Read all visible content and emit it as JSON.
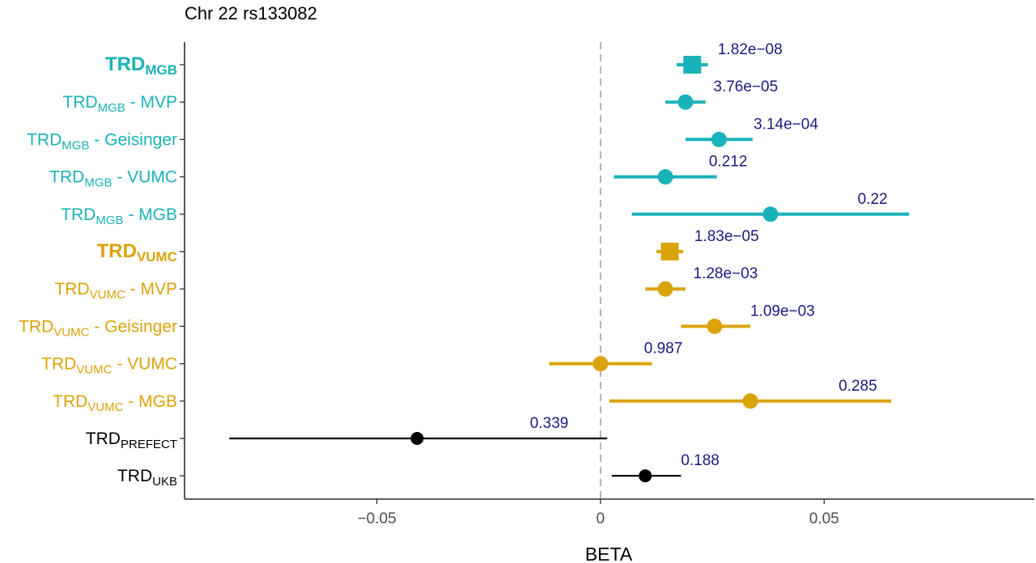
{
  "chart_data": {
    "type": "forest",
    "title": "Chr 22 rs133082",
    "xlabel": "BETA",
    "xlim": [
      -0.093,
      0.097
    ],
    "x_ticks": [
      -0.05,
      0,
      0.05
    ],
    "x_tick_labels": [
      "−0.05",
      "0",
      "0.05"
    ],
    "reference_line": 0,
    "grid": false,
    "colors": {
      "MGB": "#1ab2b9",
      "VUMC": "#dba30a",
      "other": "#000000",
      "pvalue": "#1a1a80"
    },
    "rows": [
      {
        "id": "trd-mgb",
        "base": "TRD",
        "sub": "MGB",
        "suffix": "",
        "bold": true,
        "group": "MGB",
        "marker": "square",
        "beta": 0.0205,
        "lo": 0.017,
        "hi": 0.024,
        "pvalue": "1.82e−08"
      },
      {
        "id": "trd-mgb-mvp",
        "base": "TRD",
        "sub": "MGB",
        "suffix": " - MVP",
        "bold": false,
        "group": "MGB",
        "marker": "circle",
        "beta": 0.019,
        "lo": 0.0145,
        "hi": 0.0235,
        "pvalue": "3.76e−05"
      },
      {
        "id": "trd-mgb-geisinger",
        "base": "TRD",
        "sub": "MGB",
        "suffix": " - Geisinger",
        "bold": false,
        "group": "MGB",
        "marker": "circle",
        "beta": 0.0265,
        "lo": 0.019,
        "hi": 0.034,
        "pvalue": "3.14e−04"
      },
      {
        "id": "trd-mgb-vumc",
        "base": "TRD",
        "sub": "MGB",
        "suffix": " - VUMC",
        "bold": false,
        "group": "MGB",
        "marker": "circle",
        "beta": 0.0145,
        "lo": 0.003,
        "hi": 0.026,
        "pvalue": "0.212"
      },
      {
        "id": "trd-mgb-mgb",
        "base": "TRD",
        "sub": "MGB",
        "suffix": " - MGB",
        "bold": false,
        "group": "MGB",
        "marker": "circle",
        "beta": 0.038,
        "lo": 0.007,
        "hi": 0.069,
        "pvalue": "0.22"
      },
      {
        "id": "trd-vumc",
        "base": "TRD",
        "sub": "VUMC",
        "suffix": "",
        "bold": true,
        "group": "VUMC",
        "marker": "square",
        "beta": 0.0155,
        "lo": 0.0125,
        "hi": 0.0185,
        "pvalue": "1.83e−05"
      },
      {
        "id": "trd-vumc-mvp",
        "base": "TRD",
        "sub": "VUMC",
        "suffix": " - MVP",
        "bold": false,
        "group": "VUMC",
        "marker": "circle",
        "beta": 0.0145,
        "lo": 0.01,
        "hi": 0.019,
        "pvalue": "1.28e−03"
      },
      {
        "id": "trd-vumc-geisinger",
        "base": "TRD",
        "sub": "VUMC",
        "suffix": " - Geisinger",
        "bold": false,
        "group": "VUMC",
        "marker": "circle",
        "beta": 0.0255,
        "lo": 0.018,
        "hi": 0.0335,
        "pvalue": "1.09e−03"
      },
      {
        "id": "trd-vumc-vumc",
        "base": "TRD",
        "sub": "VUMC",
        "suffix": " - VUMC",
        "bold": false,
        "group": "VUMC",
        "marker": "circle",
        "beta": 0.0,
        "lo": -0.0115,
        "hi": 0.0115,
        "pvalue": "0.987"
      },
      {
        "id": "trd-vumc-mgb",
        "base": "TRD",
        "sub": "VUMC",
        "suffix": " - MGB",
        "bold": false,
        "group": "VUMC",
        "marker": "circle",
        "beta": 0.0335,
        "lo": 0.002,
        "hi": 0.065,
        "pvalue": "0.285"
      },
      {
        "id": "trd-prefect",
        "base": "TRD",
        "sub": "PREFECT",
        "suffix": "",
        "bold": false,
        "group": "other",
        "marker": "circle",
        "beta": -0.041,
        "lo": -0.083,
        "hi": 0.0015,
        "pvalue": "0.339"
      },
      {
        "id": "trd-ukb",
        "base": "TRD",
        "sub": "UKB",
        "suffix": "",
        "bold": false,
        "group": "other",
        "marker": "circle",
        "beta": 0.01,
        "lo": 0.0025,
        "hi": 0.018,
        "pvalue": "0.188"
      }
    ]
  }
}
